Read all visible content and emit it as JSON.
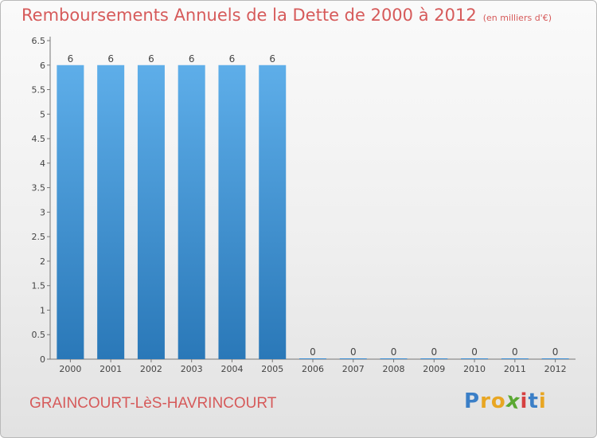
{
  "chart_data": {
    "type": "bar",
    "title": "Remboursements Annuels de la Dette de 2000 à 2012",
    "subtitle": "(en milliers d'€)",
    "categories": [
      "2000",
      "2001",
      "2002",
      "2003",
      "2004",
      "2005",
      "2006",
      "2007",
      "2008",
      "2009",
      "2010",
      "2011",
      "2012"
    ],
    "values": [
      6,
      6,
      6,
      6,
      6,
      6,
      0,
      0,
      0,
      0,
      0,
      0,
      0
    ],
    "data_labels": [
      "6",
      "6",
      "6",
      "6",
      "6",
      "6",
      "0",
      "0",
      "0",
      "0",
      "0",
      "0",
      "0"
    ],
    "ylim": [
      0,
      6.5
    ],
    "yticks": [
      0,
      0.5,
      1,
      1.5,
      2,
      2.5,
      3,
      3.5,
      4,
      4.5,
      5,
      5.5,
      6,
      6.5
    ],
    "ytick_labels": [
      "0",
      "0.5",
      "1",
      "1.5",
      "2",
      "2.5",
      "3",
      "3.5",
      "4",
      "4.5",
      "5",
      "5.5",
      "6",
      "6.5"
    ],
    "xlabel": "",
    "ylabel": "",
    "grid": false,
    "bar_color": "#3d8fd4"
  },
  "footer": {
    "commune": "GRAINCOURT-LèS-HAVRINCOURT",
    "logo_letters": [
      "P",
      "r",
      "o",
      "x",
      "i",
      "t",
      "i"
    ],
    "logo_colors": [
      "#3b7fc7",
      "#e8a623",
      "#e8a623",
      "#5aa832",
      "#d64040",
      "#3b7fc7",
      "#e8a623"
    ]
  }
}
